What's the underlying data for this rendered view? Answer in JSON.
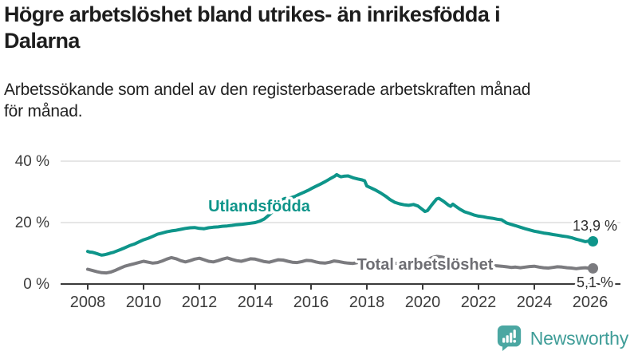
{
  "header": {
    "title": "Högre arbetslöshet bland utrikes- än inrikesfödda i\nDalarna",
    "subtitle": "Arbetssökande som andel av den registerbaserade arbetskraften månad\nför månad."
  },
  "chart_data": {
    "type": "line",
    "unit": "%",
    "grid": "horizontal-only",
    "legend_position": "inline-labels",
    "xlim": [
      2008,
      2026.1
    ],
    "ylim": [
      0,
      40
    ],
    "x_ticks": [
      "2008",
      "2010",
      "2012",
      "2014",
      "2016",
      "2018",
      "2020",
      "2022",
      "2024",
      "2026"
    ],
    "y_ticks": [
      {
        "value": 0,
        "label": "0 %"
      },
      {
        "value": 20,
        "label": "20 %"
      },
      {
        "value": 40,
        "label": "40 %"
      }
    ],
    "series": [
      {
        "name": "Utlandsfödda",
        "color": "#0E958A",
        "end_label": "13,9 %",
        "end_value": 13.9,
        "points": [
          [
            2008.0,
            10.6
          ],
          [
            2008.08,
            10.4
          ],
          [
            2008.17,
            10.3
          ],
          [
            2008.25,
            10.1
          ],
          [
            2008.33,
            9.9
          ],
          [
            2008.42,
            9.6
          ],
          [
            2008.5,
            9.4
          ],
          [
            2008.58,
            9.5
          ],
          [
            2008.67,
            9.7
          ],
          [
            2008.75,
            9.9
          ],
          [
            2008.83,
            10.1
          ],
          [
            2008.92,
            10.3
          ],
          [
            2009.0,
            10.6
          ],
          [
            2009.17,
            11.2
          ],
          [
            2009.33,
            11.8
          ],
          [
            2009.5,
            12.5
          ],
          [
            2009.67,
            13.0
          ],
          [
            2009.83,
            13.7
          ],
          [
            2010.0,
            14.4
          ],
          [
            2010.17,
            14.9
          ],
          [
            2010.33,
            15.5
          ],
          [
            2010.5,
            16.2
          ],
          [
            2010.67,
            16.6
          ],
          [
            2010.83,
            17.0
          ],
          [
            2011.0,
            17.3
          ],
          [
            2011.17,
            17.5
          ],
          [
            2011.33,
            17.8
          ],
          [
            2011.5,
            18.1
          ],
          [
            2011.67,
            18.3
          ],
          [
            2011.83,
            18.4
          ],
          [
            2012.0,
            18.1
          ],
          [
            2012.17,
            18.0
          ],
          [
            2012.33,
            18.3
          ],
          [
            2012.5,
            18.5
          ],
          [
            2012.67,
            18.6
          ],
          [
            2012.83,
            18.8
          ],
          [
            2013.0,
            18.9
          ],
          [
            2013.17,
            19.1
          ],
          [
            2013.33,
            19.3
          ],
          [
            2013.5,
            19.4
          ],
          [
            2013.67,
            19.6
          ],
          [
            2013.83,
            19.8
          ],
          [
            2014.0,
            20.0
          ],
          [
            2014.17,
            20.5
          ],
          [
            2014.33,
            21.2
          ],
          [
            2014.5,
            22.5
          ],
          [
            2014.67,
            24.0
          ],
          [
            2014.83,
            25.9
          ],
          [
            2015.0,
            27.6
          ],
          [
            2015.08,
            27.9
          ],
          [
            2015.17,
            27.4
          ],
          [
            2015.25,
            28.0
          ],
          [
            2015.42,
            28.5
          ],
          [
            2015.58,
            29.2
          ],
          [
            2015.75,
            29.9
          ],
          [
            2015.92,
            30.6
          ],
          [
            2016.0,
            31.0
          ],
          [
            2016.17,
            31.8
          ],
          [
            2016.33,
            32.5
          ],
          [
            2016.5,
            33.3
          ],
          [
            2016.67,
            34.2
          ],
          [
            2016.83,
            35.0
          ],
          [
            2016.92,
            35.6
          ],
          [
            2017.0,
            35.2
          ],
          [
            2017.08,
            34.9
          ],
          [
            2017.17,
            35.1
          ],
          [
            2017.33,
            35.2
          ],
          [
            2017.5,
            34.6
          ],
          [
            2017.67,
            34.2
          ],
          [
            2017.83,
            33.9
          ],
          [
            2017.92,
            33.6
          ],
          [
            2018.0,
            31.9
          ],
          [
            2018.17,
            31.2
          ],
          [
            2018.33,
            30.5
          ],
          [
            2018.5,
            29.6
          ],
          [
            2018.67,
            28.6
          ],
          [
            2018.83,
            27.5
          ],
          [
            2019.0,
            26.6
          ],
          [
            2019.17,
            26.1
          ],
          [
            2019.33,
            25.8
          ],
          [
            2019.5,
            25.6
          ],
          [
            2019.67,
            25.9
          ],
          [
            2019.83,
            25.4
          ],
          [
            2020.0,
            24.2
          ],
          [
            2020.08,
            23.6
          ],
          [
            2020.17,
            23.9
          ],
          [
            2020.33,
            25.8
          ],
          [
            2020.5,
            27.7
          ],
          [
            2020.58,
            27.9
          ],
          [
            2020.75,
            26.9
          ],
          [
            2020.92,
            25.7
          ],
          [
            2021.0,
            25.3
          ],
          [
            2021.08,
            26.0
          ],
          [
            2021.17,
            25.4
          ],
          [
            2021.33,
            24.4
          ],
          [
            2021.5,
            23.5
          ],
          [
            2021.67,
            23.0
          ],
          [
            2021.83,
            22.5
          ],
          [
            2022.0,
            22.1
          ],
          [
            2022.17,
            21.9
          ],
          [
            2022.33,
            21.6
          ],
          [
            2022.5,
            21.4
          ],
          [
            2022.67,
            21.1
          ],
          [
            2022.83,
            20.9
          ],
          [
            2023.0,
            19.9
          ],
          [
            2023.17,
            19.4
          ],
          [
            2023.33,
            19.0
          ],
          [
            2023.5,
            18.5
          ],
          [
            2023.67,
            18.0
          ],
          [
            2023.83,
            17.6
          ],
          [
            2024.0,
            17.2
          ],
          [
            2024.17,
            16.9
          ],
          [
            2024.33,
            16.6
          ],
          [
            2024.5,
            16.4
          ],
          [
            2024.67,
            16.1
          ],
          [
            2024.83,
            15.9
          ],
          [
            2025.0,
            15.6
          ],
          [
            2025.17,
            15.4
          ],
          [
            2025.33,
            15.1
          ],
          [
            2025.5,
            14.6
          ],
          [
            2025.67,
            14.2
          ],
          [
            2025.83,
            13.8
          ],
          [
            2026.0,
            14.1
          ],
          [
            2026.1,
            13.9
          ]
        ]
      },
      {
        "name": "Total arbetslöshet",
        "color": "#7B7B7F",
        "label_color": "#6E6E73",
        "end_label": "5,1 %",
        "end_value": 5.1,
        "points": [
          [
            2008.0,
            4.8
          ],
          [
            2008.17,
            4.4
          ],
          [
            2008.33,
            4.0
          ],
          [
            2008.5,
            3.7
          ],
          [
            2008.67,
            3.6
          ],
          [
            2008.83,
            3.9
          ],
          [
            2009.0,
            4.5
          ],
          [
            2009.17,
            5.2
          ],
          [
            2009.33,
            5.8
          ],
          [
            2009.5,
            6.2
          ],
          [
            2009.67,
            6.6
          ],
          [
            2009.83,
            7.0
          ],
          [
            2010.0,
            7.4
          ],
          [
            2010.17,
            7.1
          ],
          [
            2010.33,
            6.8
          ],
          [
            2010.5,
            7.0
          ],
          [
            2010.67,
            7.5
          ],
          [
            2010.83,
            8.1
          ],
          [
            2011.0,
            8.6
          ],
          [
            2011.17,
            8.2
          ],
          [
            2011.33,
            7.6
          ],
          [
            2011.5,
            7.2
          ],
          [
            2011.67,
            7.6
          ],
          [
            2011.83,
            8.1
          ],
          [
            2012.0,
            8.4
          ],
          [
            2012.17,
            7.9
          ],
          [
            2012.33,
            7.4
          ],
          [
            2012.5,
            7.2
          ],
          [
            2012.67,
            7.6
          ],
          [
            2012.83,
            8.1
          ],
          [
            2013.0,
            8.5
          ],
          [
            2013.17,
            8.0
          ],
          [
            2013.33,
            7.6
          ],
          [
            2013.5,
            7.4
          ],
          [
            2013.67,
            7.8
          ],
          [
            2013.83,
            8.2
          ],
          [
            2014.0,
            8.1
          ],
          [
            2014.17,
            7.7
          ],
          [
            2014.33,
            7.3
          ],
          [
            2014.5,
            7.1
          ],
          [
            2014.67,
            7.5
          ],
          [
            2014.83,
            7.9
          ],
          [
            2015.0,
            7.8
          ],
          [
            2015.17,
            7.4
          ],
          [
            2015.33,
            7.1
          ],
          [
            2015.5,
            7.0
          ],
          [
            2015.67,
            7.3
          ],
          [
            2015.83,
            7.7
          ],
          [
            2016.0,
            7.6
          ],
          [
            2016.17,
            7.2
          ],
          [
            2016.33,
            6.9
          ],
          [
            2016.5,
            6.8
          ],
          [
            2016.67,
            7.1
          ],
          [
            2016.83,
            7.5
          ],
          [
            2017.0,
            7.3
          ],
          [
            2017.17,
            7.0
          ],
          [
            2017.33,
            6.8
          ],
          [
            2017.5,
            6.7
          ],
          [
            2017.67,
            7.0
          ],
          [
            2017.83,
            7.2
          ],
          [
            2018.0,
            7.0
          ],
          [
            2018.17,
            6.7
          ],
          [
            2018.33,
            6.4
          ],
          [
            2018.5,
            6.3
          ],
          [
            2018.67,
            6.6
          ],
          [
            2018.83,
            6.9
          ],
          [
            2019.0,
            6.8
          ],
          [
            2019.17,
            6.5
          ],
          [
            2019.33,
            6.4
          ],
          [
            2019.5,
            6.5
          ],
          [
            2019.67,
            6.8
          ],
          [
            2019.83,
            7.0
          ],
          [
            2020.0,
            7.1
          ],
          [
            2020.17,
            7.8
          ],
          [
            2020.33,
            8.6
          ],
          [
            2020.5,
            9.0
          ],
          [
            2020.67,
            8.8
          ],
          [
            2020.83,
            8.5
          ],
          [
            2021.0,
            8.2
          ],
          [
            2021.17,
            7.8
          ],
          [
            2021.33,
            7.4
          ],
          [
            2021.5,
            7.1
          ],
          [
            2021.67,
            6.9
          ],
          [
            2021.83,
            6.8
          ],
          [
            2022.0,
            6.6
          ],
          [
            2022.17,
            6.3
          ],
          [
            2022.33,
            6.1
          ],
          [
            2022.5,
            6.0
          ],
          [
            2022.67,
            5.9
          ],
          [
            2022.83,
            5.8
          ],
          [
            2023.0,
            5.6
          ],
          [
            2023.17,
            5.4
          ],
          [
            2023.33,
            5.5
          ],
          [
            2023.5,
            5.3
          ],
          [
            2023.67,
            5.5
          ],
          [
            2023.83,
            5.7
          ],
          [
            2024.0,
            5.8
          ],
          [
            2024.17,
            5.5
          ],
          [
            2024.33,
            5.3
          ],
          [
            2024.5,
            5.2
          ],
          [
            2024.67,
            5.4
          ],
          [
            2024.83,
            5.6
          ],
          [
            2025.0,
            5.5
          ],
          [
            2025.17,
            5.3
          ],
          [
            2025.33,
            5.2
          ],
          [
            2025.5,
            5.0
          ],
          [
            2025.67,
            5.2
          ],
          [
            2025.83,
            5.3
          ],
          [
            2026.0,
            5.1
          ],
          [
            2026.1,
            5.1
          ]
        ]
      }
    ]
  },
  "footer": {
    "brand": "Newsworthy",
    "brand_color": "#3F9D98",
    "icon": "chart-speech-bubble-icon",
    "icon_color": "#4BA7A2"
  }
}
